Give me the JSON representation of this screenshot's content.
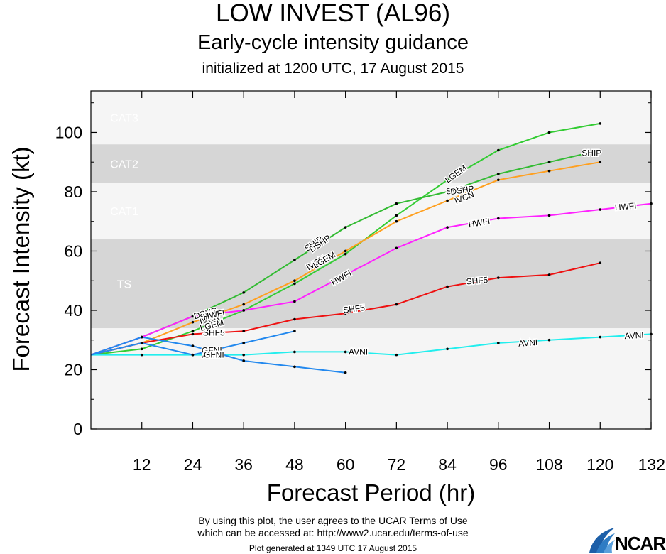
{
  "header": {
    "title": "LOW INVEST (AL96)",
    "subtitle": "Early-cycle intensity guidance",
    "initialized": "initialized at 1200 UTC, 17 August 2015"
  },
  "footer": {
    "terms_line1": "By using this plot, the user agrees to the UCAR Terms of Use",
    "terms_line2": "which can be accessed at: http://www2.ucar.edu/terms-of-use",
    "generated": "Plot generated at 1349 UTC   17 August 2015",
    "logo": "NCAR"
  },
  "chart_data": {
    "type": "line",
    "xlabel": "Forecast Period (hr)",
    "ylabel": "Forecast Intensity (kt)",
    "xlim": [
      0,
      132
    ],
    "ylim": [
      0,
      114
    ],
    "xticks": [
      12,
      24,
      36,
      48,
      60,
      72,
      84,
      96,
      108,
      120,
      132
    ],
    "yticks": [
      0,
      20,
      40,
      60,
      80,
      100
    ],
    "bands": [
      {
        "name": "TS",
        "from": 34,
        "to": 64,
        "color": "#d6d6d6"
      },
      {
        "name": "CAT1",
        "from": 64,
        "to": 83,
        "color": "#f5f5f5"
      },
      {
        "name": "CAT2",
        "from": 83,
        "to": 96,
        "color": "#d6d6d6"
      },
      {
        "name": "CAT3",
        "from": 96,
        "to": 114,
        "color": "#f5f5f5"
      }
    ],
    "base_band_color": "#f5f5f5",
    "series": [
      {
        "name": "SHIP",
        "color": "#33cc33",
        "x": [
          0,
          12,
          24,
          36,
          48,
          60,
          72,
          84,
          96,
          108,
          120
        ],
        "y": [
          25,
          27,
          33,
          40,
          49,
          59,
          72,
          84,
          94,
          100,
          103
        ]
      },
      {
        "name": "DSHP",
        "color": "#33bb33",
        "x": [
          0,
          12,
          24,
          36,
          48,
          60,
          72,
          84,
          96,
          108,
          120
        ],
        "y": [
          25,
          31,
          38,
          46,
          57,
          68,
          76,
          80,
          86,
          90,
          94
        ]
      },
      {
        "name": "IVCN",
        "color": "#ffa020",
        "x": [
          0,
          12,
          24,
          36,
          48,
          60,
          72,
          84,
          96,
          108,
          120
        ],
        "y": [
          25,
          29,
          36,
          42,
          50,
          60,
          70,
          77,
          84,
          87,
          90
        ]
      },
      {
        "name": "HWFI",
        "color": "#ff22ff",
        "x": [
          0,
          12,
          24,
          36,
          48,
          60,
          72,
          84,
          96,
          108,
          120,
          132
        ],
        "y": [
          25,
          31,
          38,
          40,
          43,
          52,
          61,
          68,
          71,
          72,
          74,
          76
        ]
      },
      {
        "name": "SHF5",
        "color": "#ee1111",
        "x": [
          0,
          12,
          24,
          36,
          48,
          60,
          72,
          84,
          96,
          108,
          120
        ],
        "y": [
          25,
          29,
          32,
          33,
          37,
          39,
          42,
          48,
          51,
          52,
          56
        ]
      },
      {
        "name": "AVNI",
        "color": "#22eeee",
        "x": [
          0,
          12,
          24,
          36,
          48,
          60,
          72,
          84,
          96,
          108,
          120,
          132
        ],
        "y": [
          25,
          25,
          25,
          25,
          26,
          26,
          25,
          27,
          29,
          30,
          31,
          32
        ]
      },
      {
        "name": "",
        "color": "#2288ee",
        "x": [
          0,
          12,
          24,
          36,
          48
        ],
        "y": [
          25,
          29,
          25,
          29,
          33
        ]
      },
      {
        "name": "",
        "color": "#2288ee",
        "x": [
          0,
          12,
          24,
          36,
          48,
          60
        ],
        "y": [
          25,
          31,
          28,
          23,
          21,
          19
        ]
      }
    ],
    "labels": [
      {
        "text": "LGEM",
        "x": 86,
        "y": 86,
        "angle": -36
      },
      {
        "text": "SHIP",
        "x": 86,
        "y": 80.5,
        "angle": -8
      },
      {
        "text": "DSHP",
        "x": 87.5,
        "y": 80.5,
        "angle": -8
      },
      {
        "text": "IVCN",
        "x": 88,
        "y": 78,
        "angle": -22
      },
      {
        "text": "SHIP",
        "x": 118,
        "y": 93,
        "angle": 0
      },
      {
        "text": "SHIP",
        "x": 52.5,
        "y": 62.5,
        "angle": -35
      },
      {
        "text": "DSHP",
        "x": 54,
        "y": 62.5,
        "angle": -35
      },
      {
        "text": "IVCN",
        "x": 53,
        "y": 56,
        "angle": -30
      },
      {
        "text": "LGEM",
        "x": 55,
        "y": 57,
        "angle": -30
      },
      {
        "text": "HWFI",
        "x": 59,
        "y": 51,
        "angle": -30
      },
      {
        "text": "HWFI",
        "x": 91.5,
        "y": 69.5,
        "angle": -10
      },
      {
        "text": "HWFI",
        "x": 126,
        "y": 75,
        "angle": -5
      },
      {
        "text": "SHF5",
        "x": 62,
        "y": 40.5,
        "angle": -7
      },
      {
        "text": "SHF5",
        "x": 91,
        "y": 50,
        "angle": -5
      },
      {
        "text": "SHF5",
        "x": 29,
        "y": 32.5,
        "angle": 0
      },
      {
        "text": "AVNI",
        "x": 63,
        "y": 26,
        "angle": 0
      },
      {
        "text": "AVNI",
        "x": 103,
        "y": 29,
        "angle": -4
      },
      {
        "text": "AVNI",
        "x": 128,
        "y": 31.5,
        "angle": -3
      },
      {
        "text": "DSHP",
        "x": 27,
        "y": 39,
        "angle": -15
      },
      {
        "text": "SHIP",
        "x": 28,
        "y": 38.5,
        "angle": -15
      },
      {
        "text": "IVCN",
        "x": 28,
        "y": 37,
        "angle": -15
      },
      {
        "text": "HWFI",
        "x": 29,
        "y": 38.5,
        "angle": -12
      },
      {
        "text": "LGEM",
        "x": 28.5,
        "y": 35,
        "angle": -15
      },
      {
        "text": "GFNI",
        "x": 28.5,
        "y": 26.5,
        "angle": 0
      },
      {
        "text": "AVNI",
        "x": 28.5,
        "y": 25,
        "angle": 0
      },
      {
        "text": "GFNI",
        "x": 29,
        "y": 25,
        "angle": 0
      }
    ]
  }
}
